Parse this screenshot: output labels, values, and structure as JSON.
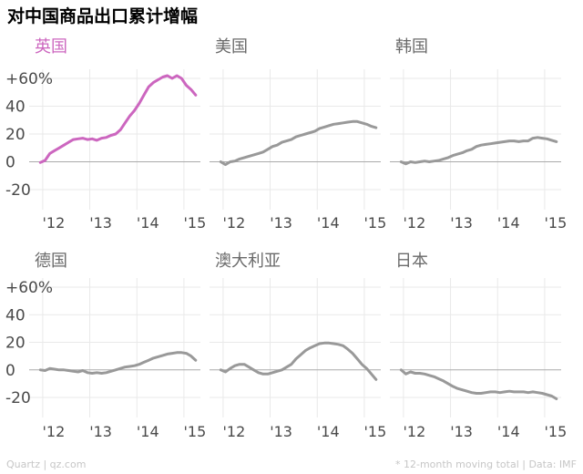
{
  "title": "对中国商品出口累计增幅",
  "footer": {
    "source_left": "Quartz | qz.com",
    "source_right": "* 12-month moving total | Data: IMF"
  },
  "colors": {
    "highlight": "#cc66bf",
    "series": "#999999",
    "grid": "#e9e9e9",
    "zero_line": "#aaaaaa",
    "tick_text": "#4a4a4a",
    "panel_title": "#6a6a6a"
  },
  "chart_data": {
    "type": "line",
    "layout": "small-multiples-2x3",
    "y_tick_labels": [
      "+60%",
      "40",
      "20",
      "0",
      "-20"
    ],
    "y_ticks": [
      60,
      40,
      20,
      0,
      -20
    ],
    "x_tick_labels": [
      "'12",
      "'13",
      "'14",
      "'15"
    ],
    "x_ticks": [
      2012,
      2013,
      2014,
      2015
    ],
    "x_range": [
      2011.75,
      2015.35
    ],
    "ylim": [
      -30,
      65
    ],
    "grid": true,
    "panels": [
      {
        "name": "英国",
        "highlight": true,
        "x": [
          2011.95,
          2012.05,
          2012.15,
          2012.25,
          2012.35,
          2012.45,
          2012.55,
          2012.65,
          2012.75,
          2012.85,
          2012.95,
          2013.05,
          2013.15,
          2013.25,
          2013.35,
          2013.45,
          2013.55,
          2013.65,
          2013.75,
          2013.85,
          2013.95,
          2014.05,
          2014.15,
          2014.25,
          2014.35,
          2014.45,
          2014.55,
          2014.65,
          2014.75,
          2014.85,
          2014.95,
          2015.05,
          2015.15,
          2015.25
        ],
        "values": [
          -0.5,
          1,
          6,
          8,
          10,
          12,
          14,
          16,
          16.5,
          17,
          16,
          16.5,
          15.5,
          17,
          17.5,
          19,
          20,
          23,
          28,
          33,
          37,
          42,
          48,
          54,
          57,
          59,
          61,
          62,
          60,
          62,
          60,
          55,
          52,
          48
        ]
      },
      {
        "name": "美国",
        "highlight": false,
        "x": [
          2011.95,
          2012.05,
          2012.15,
          2012.25,
          2012.35,
          2012.45,
          2012.55,
          2012.65,
          2012.75,
          2012.85,
          2012.95,
          2013.05,
          2013.15,
          2013.25,
          2013.35,
          2013.45,
          2013.55,
          2013.65,
          2013.75,
          2013.85,
          2013.95,
          2014.05,
          2014.15,
          2014.25,
          2014.35,
          2014.45,
          2014.55,
          2014.65,
          2014.75,
          2014.85,
          2014.95,
          2015.05,
          2015.15,
          2015.25
        ],
        "values": [
          0,
          -2,
          0,
          0.5,
          2,
          3,
          4,
          5,
          6,
          7,
          9,
          11,
          12,
          14,
          15,
          16,
          18,
          19,
          20,
          21,
          22,
          24,
          25,
          26,
          27,
          27.5,
          28,
          28.5,
          29,
          29,
          28,
          27,
          25.5,
          24.5
        ]
      },
      {
        "name": "韩国",
        "highlight": false,
        "x": [
          2011.95,
          2012.05,
          2012.15,
          2012.25,
          2012.35,
          2012.45,
          2012.55,
          2012.65,
          2012.75,
          2012.85,
          2012.95,
          2013.05,
          2013.15,
          2013.25,
          2013.35,
          2013.45,
          2013.55,
          2013.65,
          2013.75,
          2013.85,
          2013.95,
          2014.05,
          2014.15,
          2014.25,
          2014.35,
          2014.45,
          2014.55,
          2014.65,
          2014.75,
          2014.85,
          2014.95,
          2015.05,
          2015.15,
          2015.25
        ],
        "values": [
          0,
          -1.5,
          0,
          -0.5,
          0,
          0.5,
          0,
          0.5,
          1,
          2,
          3,
          4.5,
          5.5,
          6.5,
          8,
          9,
          11,
          12,
          12.5,
          13,
          13.5,
          14,
          14.5,
          15,
          15,
          14.5,
          15,
          15,
          17,
          17.5,
          17,
          16.5,
          15.5,
          14.5
        ]
      },
      {
        "name": "德国",
        "highlight": false,
        "x": [
          2011.95,
          2012.05,
          2012.15,
          2012.25,
          2012.35,
          2012.45,
          2012.55,
          2012.65,
          2012.75,
          2012.85,
          2012.95,
          2013.05,
          2013.15,
          2013.25,
          2013.35,
          2013.45,
          2013.55,
          2013.65,
          2013.75,
          2013.85,
          2013.95,
          2014.05,
          2014.15,
          2014.25,
          2014.35,
          2014.45,
          2014.55,
          2014.65,
          2014.75,
          2014.85,
          2014.95,
          2015.05,
          2015.15,
          2015.25
        ],
        "values": [
          0,
          -0.5,
          1,
          0.5,
          0,
          0,
          -0.5,
          -1,
          -1.5,
          -0.5,
          -2,
          -2.5,
          -2,
          -2.5,
          -2,
          -1,
          0,
          1,
          2,
          2.5,
          3,
          4,
          5.5,
          7,
          8.5,
          9.5,
          10.5,
          11.5,
          12,
          12.5,
          12.5,
          12,
          10,
          7
        ]
      },
      {
        "name": "澳大利亚",
        "highlight": false,
        "x": [
          2011.95,
          2012.05,
          2012.15,
          2012.25,
          2012.35,
          2012.45,
          2012.55,
          2012.65,
          2012.75,
          2012.85,
          2012.95,
          2013.05,
          2013.15,
          2013.25,
          2013.35,
          2013.45,
          2013.55,
          2013.65,
          2013.75,
          2013.85,
          2013.95,
          2014.05,
          2014.15,
          2014.25,
          2014.35,
          2014.45,
          2014.55,
          2014.65,
          2014.75,
          2014.85,
          2014.95,
          2015.05,
          2015.15,
          2015.25
        ],
        "values": [
          0,
          -1.5,
          1,
          3,
          4,
          4,
          2,
          0,
          -2,
          -3,
          -3,
          -2,
          -1,
          0,
          2,
          4,
          8,
          11,
          14,
          16,
          17.5,
          19,
          19.5,
          19.5,
          19,
          18.5,
          17.5,
          15,
          12,
          8,
          4,
          1,
          -3,
          -7
        ]
      },
      {
        "name": "日本",
        "highlight": false,
        "x": [
          2011.95,
          2012.05,
          2012.15,
          2012.25,
          2012.35,
          2012.45,
          2012.55,
          2012.65,
          2012.75,
          2012.85,
          2012.95,
          2013.05,
          2013.15,
          2013.25,
          2013.35,
          2013.45,
          2013.55,
          2013.65,
          2013.75,
          2013.85,
          2013.95,
          2014.05,
          2014.15,
          2014.25,
          2014.35,
          2014.45,
          2014.55,
          2014.65,
          2014.75,
          2014.85,
          2014.95,
          2015.05,
          2015.15,
          2015.25
        ],
        "values": [
          0,
          -3,
          -1.5,
          -2.5,
          -2.5,
          -3,
          -4,
          -5,
          -6.5,
          -8,
          -10,
          -12,
          -13.5,
          -14.5,
          -15.5,
          -16.5,
          -17,
          -17,
          -16.5,
          -16,
          -16,
          -16.5,
          -16,
          -15.5,
          -16,
          -16,
          -16,
          -16.5,
          -16,
          -16.5,
          -17,
          -18,
          -19,
          -21
        ]
      }
    ]
  }
}
